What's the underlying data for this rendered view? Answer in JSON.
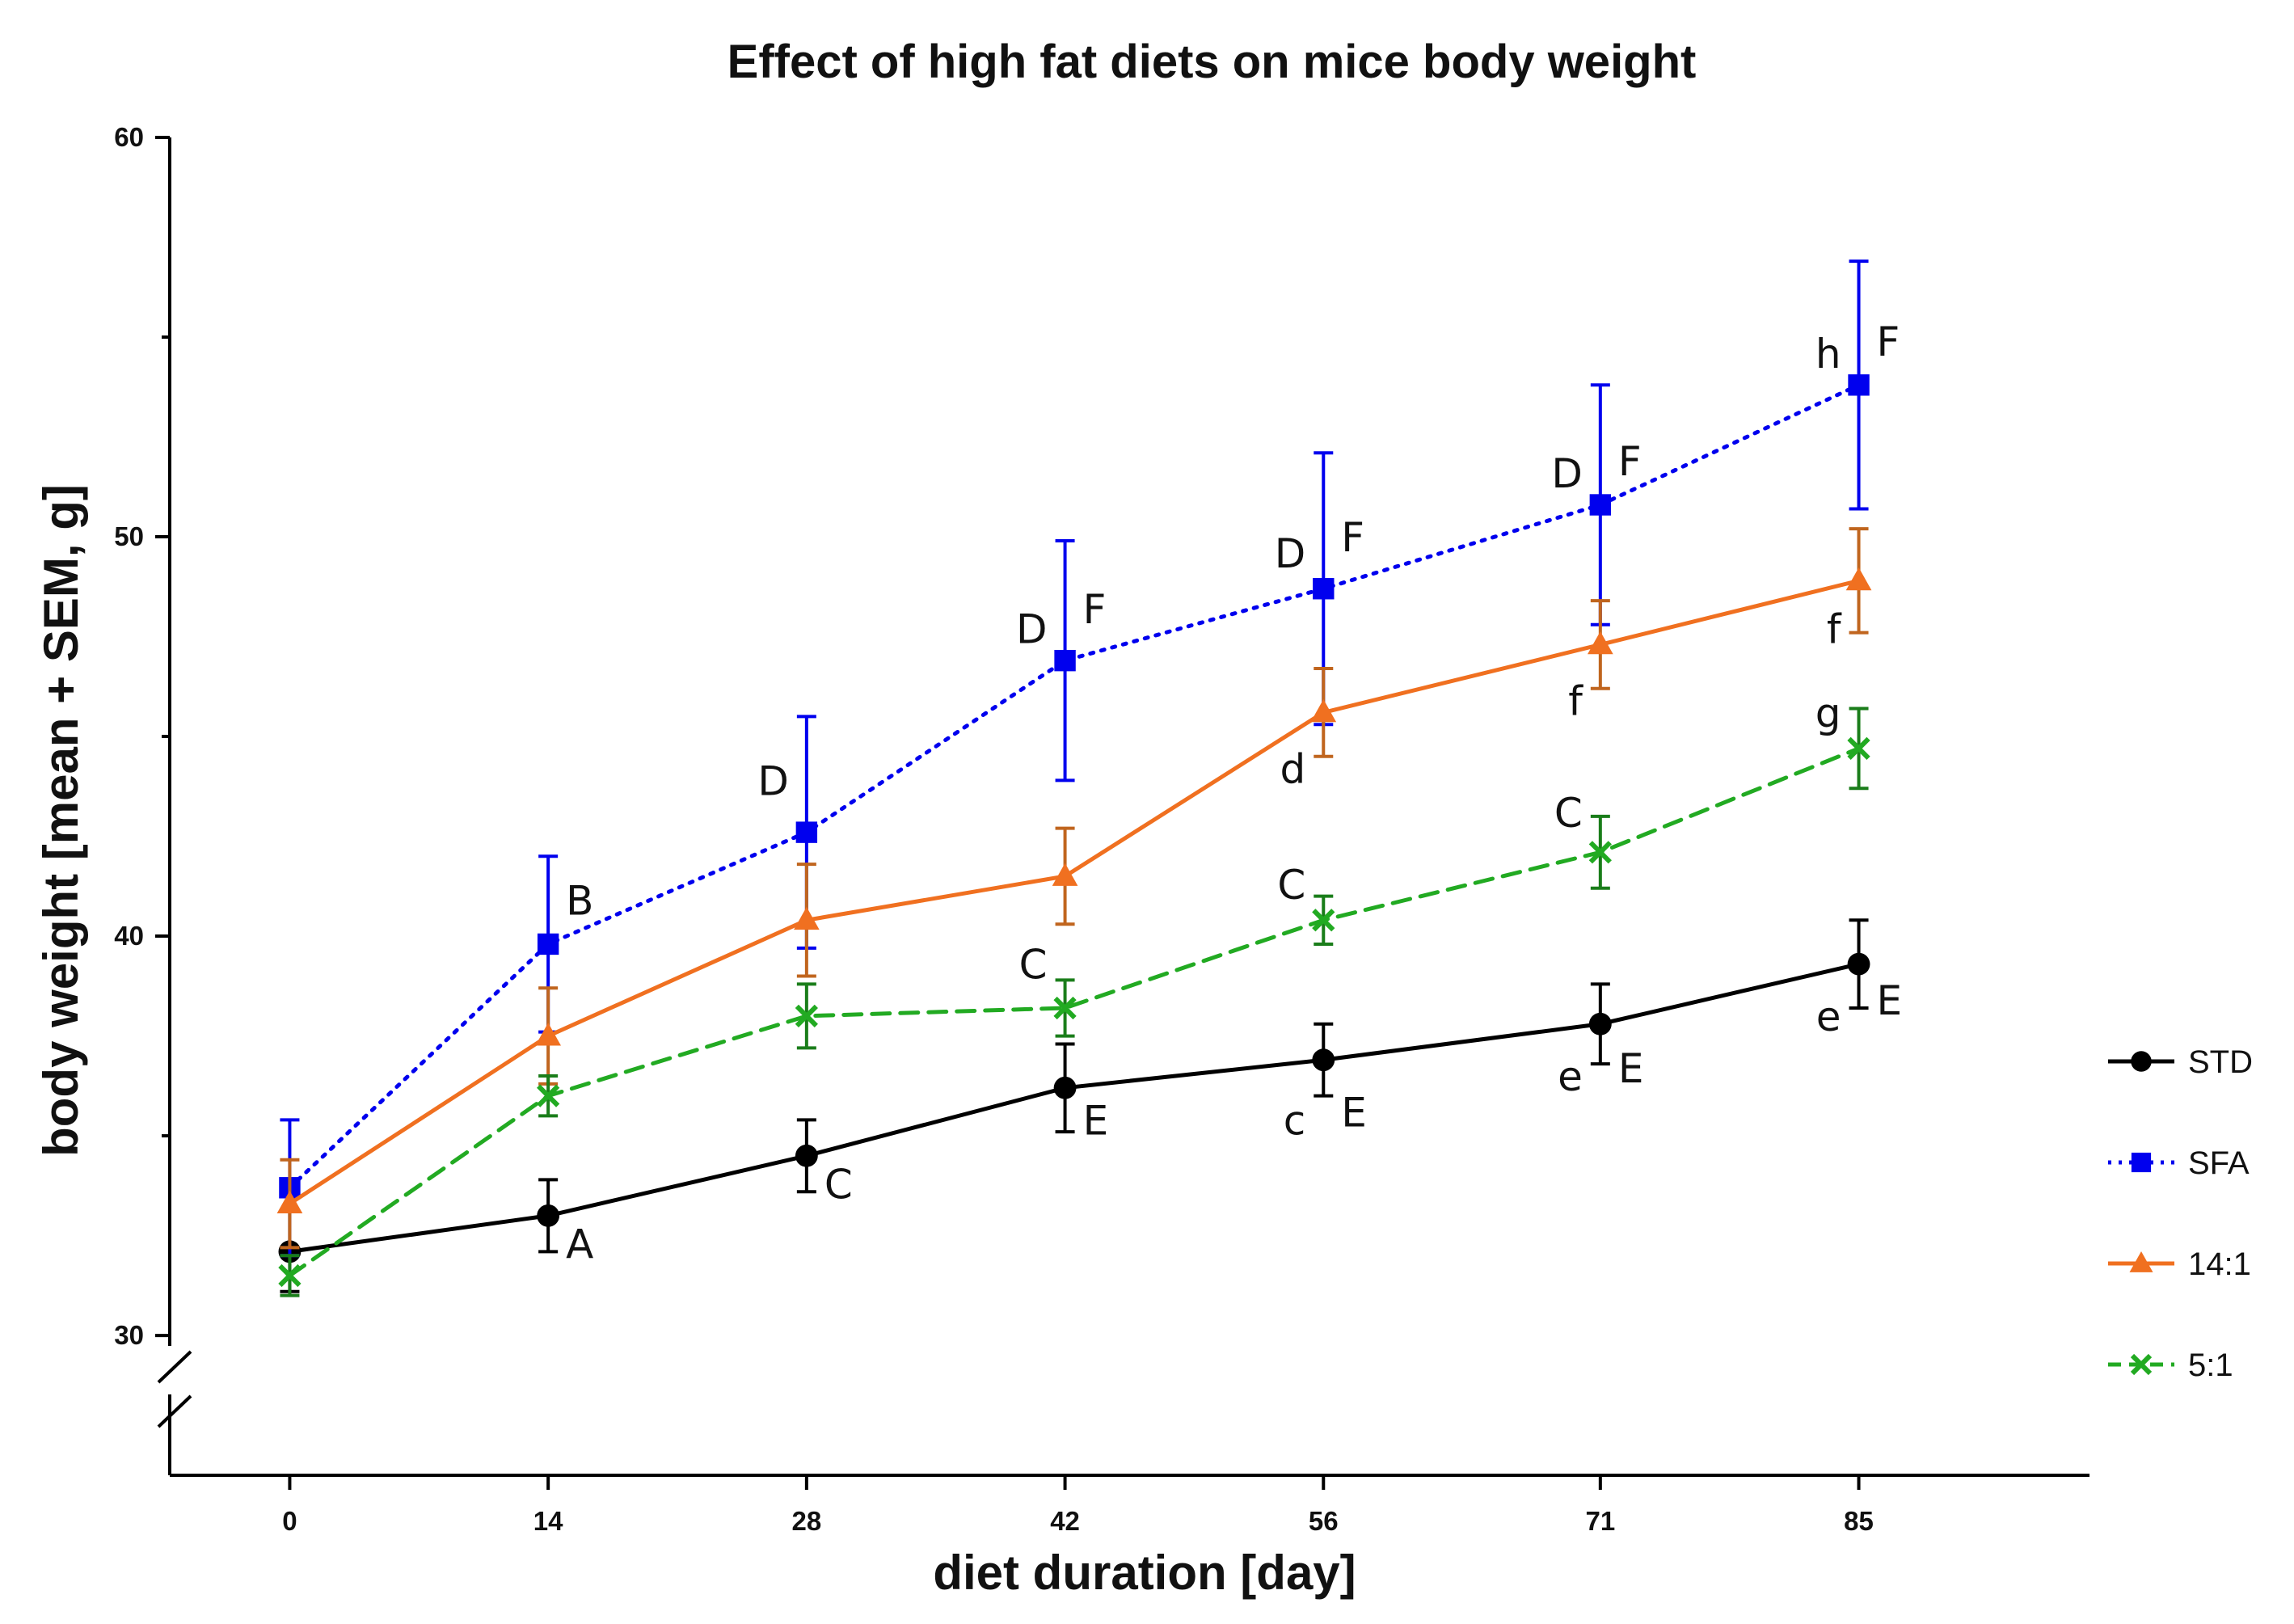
{
  "chart_data": {
    "type": "line",
    "title": "Effect of high fat diets on mice body weight",
    "xlabel": "diet duration [day]",
    "ylabel": "body weight [mean + SEM, g]",
    "x": [
      0,
      14,
      28,
      42,
      56,
      71,
      85
    ],
    "xticks": [
      "0",
      "14",
      "28",
      "42",
      "56",
      "71",
      "85"
    ],
    "yticks": [
      "30",
      "40",
      "50",
      "60"
    ],
    "ylim": [
      26.5,
      60
    ],
    "axis_break": true,
    "legend_position": "right",
    "series": [
      {
        "name": "STD",
        "color": "#000000",
        "marker": "circle",
        "line_style": "solid",
        "values": [
          32.1,
          33.0,
          34.5,
          36.2,
          36.9,
          37.8,
          39.3
        ],
        "sem": [
          1.0,
          0.9,
          0.9,
          1.1,
          0.9,
          1.0,
          1.1
        ]
      },
      {
        "name": "SFA",
        "color": "#0000ee",
        "marker": "square",
        "line_style": "dotted",
        "values": [
          33.7,
          39.8,
          42.6,
          46.9,
          48.7,
          50.8,
          53.8
        ],
        "sem": [
          1.7,
          2.2,
          2.9,
          3.0,
          3.4,
          3.0,
          3.1
        ]
      },
      {
        "name": "14:1",
        "color": "#f07020",
        "error_color": "#c0651e",
        "marker": "triangle",
        "line_style": "solid",
        "values": [
          33.3,
          37.5,
          40.4,
          41.5,
          45.6,
          47.3,
          48.9
        ],
        "sem": [
          1.1,
          1.2,
          1.4,
          1.2,
          1.1,
          1.1,
          1.3
        ]
      },
      {
        "name": "5:1",
        "color": "#22aa22",
        "error_color": "#1a7d1a",
        "marker": "x",
        "line_style": "dashed",
        "values": [
          31.5,
          36.0,
          38.0,
          38.2,
          40.4,
          42.1,
          44.7
        ],
        "sem": [
          0.5,
          0.5,
          0.8,
          0.7,
          0.6,
          0.9,
          1.0
        ]
      }
    ],
    "annotations": [
      {
        "text": "A",
        "x": 14,
        "y": 32.3
      },
      {
        "text": "B",
        "x": 14,
        "y": 40.9
      },
      {
        "text": "C",
        "x": 28,
        "y": 33.8
      },
      {
        "text": "D",
        "x": 28,
        "y": 43.9
      },
      {
        "text": "C",
        "x": 42,
        "y": 39.3
      },
      {
        "text": "D",
        "x": 42,
        "y": 47.7
      },
      {
        "text": "F",
        "x": 42,
        "y": 48.2
      },
      {
        "text": "E",
        "x": 42,
        "y": 35.4
      },
      {
        "text": "c",
        "x": 56,
        "y": 35.4
      },
      {
        "text": "E",
        "x": 56,
        "y": 35.6
      },
      {
        "text": "C",
        "x": 56,
        "y": 41.3
      },
      {
        "text": "d",
        "x": 56,
        "y": 44.2
      },
      {
        "text": "D",
        "x": 56,
        "y": 49.6
      },
      {
        "text": "F",
        "x": 56,
        "y": 50.0
      },
      {
        "text": "e",
        "x": 71,
        "y": 36.5
      },
      {
        "text": "E",
        "x": 71,
        "y": 36.7
      },
      {
        "text": "C",
        "x": 71,
        "y": 43.1
      },
      {
        "text": "f",
        "x": 71,
        "y": 45.9
      },
      {
        "text": "D",
        "x": 71,
        "y": 51.6
      },
      {
        "text": "F",
        "x": 71,
        "y": 51.9
      },
      {
        "text": "e",
        "x": 85,
        "y": 38.0
      },
      {
        "text": "E",
        "x": 85,
        "y": 38.4
      },
      {
        "text": "g",
        "x": 85,
        "y": 45.6
      },
      {
        "text": "f",
        "x": 85,
        "y": 47.7
      },
      {
        "text": "h",
        "x": 85,
        "y": 54.6
      },
      {
        "text": "F",
        "x": 85,
        "y": 54.9
      }
    ]
  }
}
